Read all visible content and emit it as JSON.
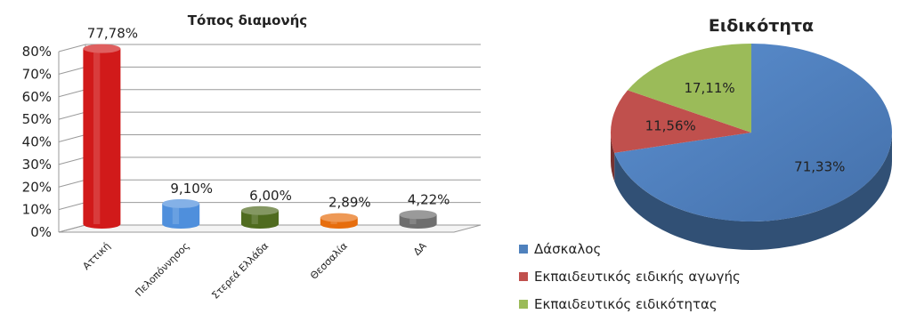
{
  "chart_data": [
    {
      "type": "bar",
      "title": "Τόπος διαμονής",
      "categories": [
        "Αττική",
        "Πελοπόννησος",
        "Στερεά Ελλάδα",
        "Θεσσαλία",
        "ΔΑ"
      ],
      "values": [
        77.78,
        9.1,
        6.0,
        2.89,
        4.22
      ],
      "value_labels": [
        "77,78%",
        "9,10%",
        "6,00%",
        "2,89%",
        "4,22%"
      ],
      "bar_colors": [
        "#d11a1a",
        "#4f8fdc",
        "#4f6b1f",
        "#e66d0d",
        "#6e6e6e"
      ],
      "ylim": [
        0,
        80
      ],
      "yticks": [
        "0%",
        "10%",
        "20%",
        "30%",
        "40%",
        "50%",
        "60%",
        "70%",
        "80%"
      ],
      "grid": true,
      "xlabel": "",
      "ylabel": ""
    },
    {
      "type": "pie",
      "title": "Ειδικότητα",
      "labels": [
        "Δάσκαλος",
        "Εκπαιδευτικός ειδικής αγωγής",
        "Εκπαιδευτικός ειδικότητας"
      ],
      "values": [
        71.33,
        11.56,
        17.11
      ],
      "value_labels": [
        "71,33%",
        "11,56%",
        "17,11%"
      ],
      "colors": [
        "#4f81bd",
        "#c0504d",
        "#9bbb59"
      ],
      "legend_position": "bottom-left"
    }
  ]
}
